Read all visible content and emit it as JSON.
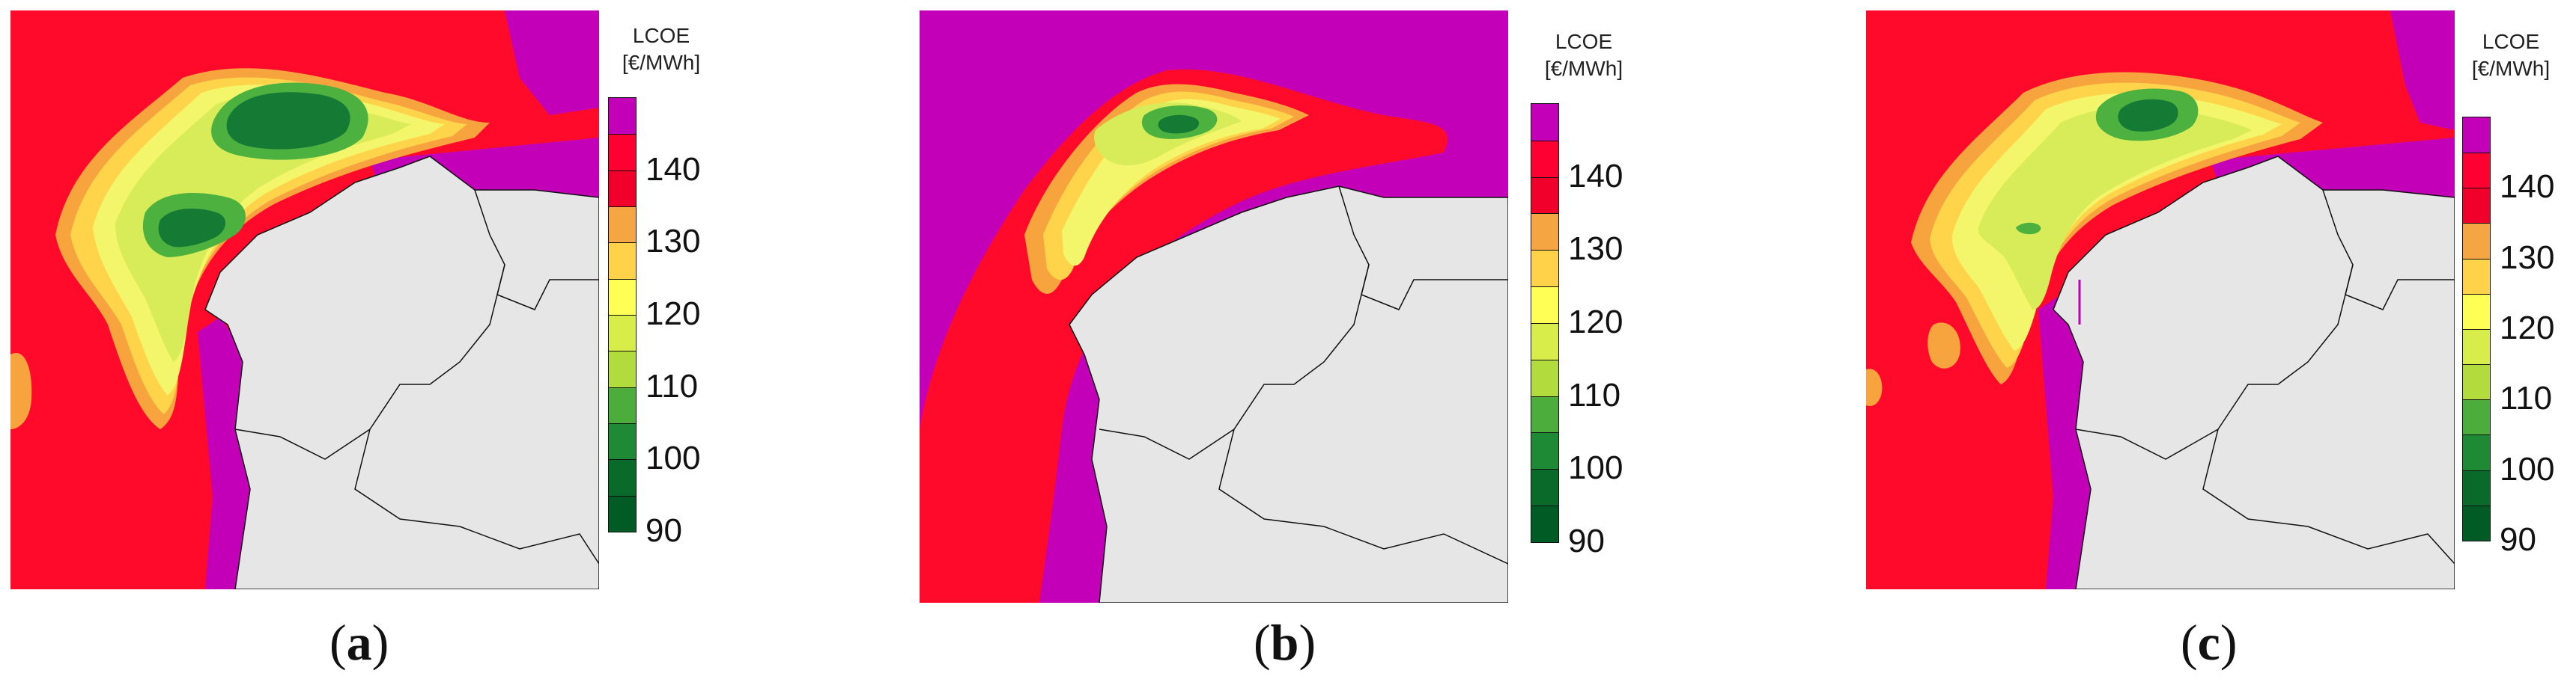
{
  "legend": {
    "title_line1": "LCOE",
    "title_line2": "[€/MWh]",
    "ticks": [
      "140",
      "130",
      "120",
      "110",
      "100",
      "90"
    ],
    "colors": [
      "#c300b8",
      "#ff0033",
      "#f0002a",
      "#f5a542",
      "#ffd24a",
      "#ffff55",
      "#d8ec4a",
      "#b2dc3d",
      "#4cad3c",
      "#1e8a35",
      "#0a6a2a",
      "#005c24"
    ]
  },
  "palette": {
    "land": "#e6e6e6",
    "border": "#111111",
    "sea_high": "#c300b8",
    "red": "#ff0a2a",
    "orange": "#f7a43e",
    "yellow_orange": "#ffd34a",
    "yellow": "#f3f56a",
    "light_green": "#d7ec58",
    "mid_green": "#4db140",
    "dark_green": "#157a33"
  },
  "panels": [
    {
      "id": "a",
      "caption_letter": "a"
    },
    {
      "id": "b",
      "caption_letter": "b"
    },
    {
      "id": "c",
      "caption_letter": "c"
    }
  ]
}
